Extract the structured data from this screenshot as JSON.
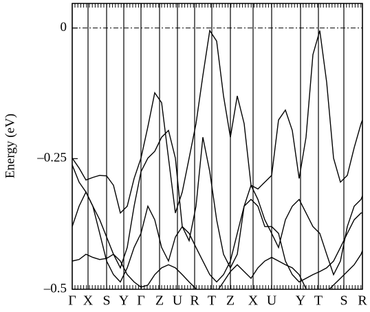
{
  "chart_data": {
    "type": "line",
    "y_label": "Energy (eV)",
    "color": "#000000",
    "x": [
      0,
      10,
      20,
      30,
      40,
      50,
      60,
      70,
      80,
      90,
      100,
      110,
      120,
      130,
      140,
      150,
      160,
      170,
      180,
      190,
      200,
      210,
      220,
      230,
      240,
      250,
      260,
      270,
      280,
      290,
      300,
      310,
      320,
      330,
      340,
      350,
      360,
      370,
      380,
      390,
      400,
      410,
      420,
      422
    ],
    "xlim": [
      0,
      422
    ],
    "xticks": [
      {
        "value": 0,
        "label": "Γ"
      },
      {
        "value": 23,
        "label": "X"
      },
      {
        "value": 50,
        "label": "S"
      },
      {
        "value": 75,
        "label": "Y"
      },
      {
        "value": 100,
        "label": "Γ"
      },
      {
        "value": 127,
        "label": "Z"
      },
      {
        "value": 153,
        "label": "U"
      },
      {
        "value": 178,
        "label": "R"
      },
      {
        "value": 203,
        "label": "T"
      },
      {
        "value": 230,
        "label": "Z"
      },
      {
        "value": 263,
        "label": "X"
      },
      {
        "value": 290,
        "label": "U"
      },
      {
        "value": 332,
        "label": "Y"
      },
      {
        "value": 358,
        "label": "T"
      },
      {
        "value": 395,
        "label": "S"
      },
      {
        "value": 422,
        "label": "R"
      }
    ],
    "ylim": [
      -0.5,
      0.047
    ],
    "yticks": [
      {
        "value": -0.5,
        "label": "–0.5"
      },
      {
        "value": -0.25,
        "label": "–0.25"
      },
      0
    ],
    "reference_line": 0,
    "series": [
      {
        "values": [
          -0.249,
          -0.268,
          -0.291,
          -0.286,
          -0.282,
          -0.283,
          -0.301,
          -0.354,
          -0.341,
          -0.288,
          -0.249,
          -0.189,
          -0.124,
          -0.143,
          -0.249,
          -0.354,
          -0.314,
          -0.249,
          -0.183,
          -0.091,
          -0.005,
          -0.025,
          -0.13,
          -0.209,
          -0.13,
          -0.183,
          -0.301,
          -0.308,
          -0.295,
          -0.282,
          -0.176,
          -0.157,
          -0.196,
          -0.288,
          -0.209,
          -0.051,
          -0.005,
          -0.104,
          -0.249,
          -0.295,
          -0.282,
          -0.229,
          -0.183,
          -0.176
        ]
      },
      {
        "values": [
          -0.262,
          -0.295,
          -0.314,
          -0.341,
          -0.367,
          -0.4,
          -0.433,
          -0.459,
          -0.42,
          -0.341,
          -0.275,
          -0.249,
          -0.236,
          -0.209,
          -0.196,
          -0.249,
          -0.38,
          -0.407,
          -0.341,
          -0.209,
          -0.275,
          -0.367,
          -0.433,
          -0.459,
          -0.433,
          -0.341,
          -0.301,
          -0.328,
          -0.367,
          -0.393,
          -0.42,
          -0.367,
          -0.341,
          -0.328,
          -0.354,
          -0.38,
          -0.393,
          -0.433,
          -0.472,
          -0.446,
          -0.38,
          -0.341,
          -0.328,
          -0.321
        ]
      },
      {
        "values": [
          -0.38,
          -0.341,
          -0.314,
          -0.341,
          -0.393,
          -0.446,
          -0.472,
          -0.486,
          -0.459,
          -0.42,
          -0.393,
          -0.341,
          -0.367,
          -0.42,
          -0.446,
          -0.4,
          -0.38,
          -0.393,
          -0.42,
          -0.446,
          -0.472,
          -0.486,
          -0.472,
          -0.446,
          -0.393,
          -0.341,
          -0.328,
          -0.341,
          -0.38,
          -0.38,
          -0.393,
          -0.446,
          -0.472,
          -0.486,
          -0.479,
          -0.472,
          -0.466,
          -0.459,
          -0.446,
          -0.42,
          -0.393,
          -0.367,
          -0.354,
          -0.354
        ]
      },
      {
        "values": [
          -0.446,
          -0.443,
          -0.433,
          -0.439,
          -0.443,
          -0.441,
          -0.433,
          -0.446,
          -0.472,
          -0.486,
          -0.496,
          -0.492,
          -0.472,
          -0.459,
          -0.453,
          -0.459,
          -0.472,
          -0.486,
          -0.499,
          -0.512,
          -0.512,
          -0.505,
          -0.486,
          -0.466,
          -0.453,
          -0.466,
          -0.479,
          -0.459,
          -0.446,
          -0.439,
          -0.446,
          -0.453,
          -0.459,
          -0.472,
          -0.499,
          -0.512,
          -0.512,
          -0.505,
          -0.492,
          -0.479,
          -0.466,
          -0.453,
          -0.433,
          -0.426
        ]
      }
    ]
  }
}
